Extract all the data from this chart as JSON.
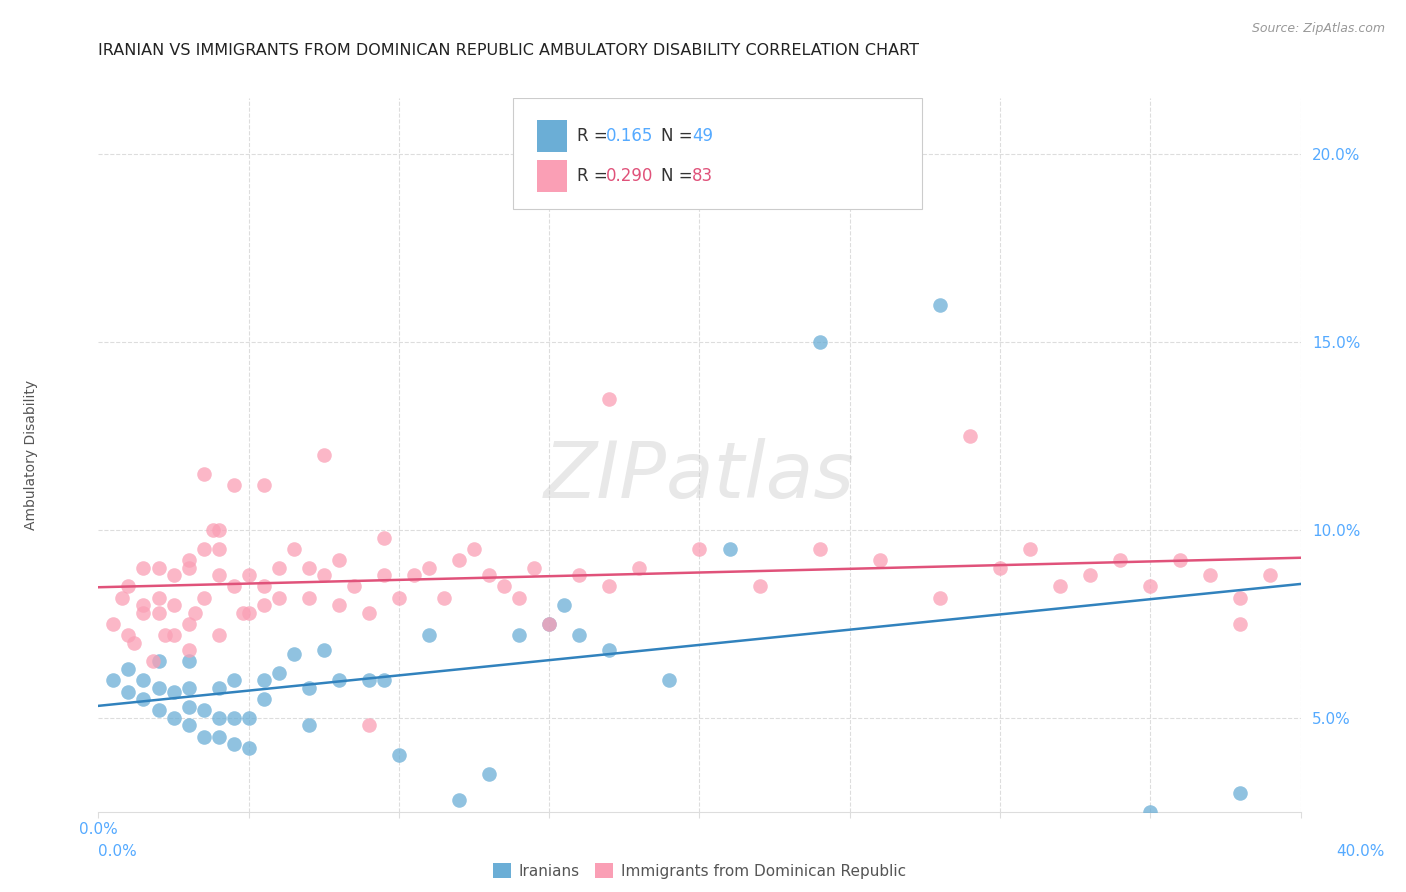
{
  "title": "IRANIAN VS IMMIGRANTS FROM DOMINICAN REPUBLIC AMBULATORY DISABILITY CORRELATION CHART",
  "source": "Source: ZipAtlas.com",
  "ylabel": "Ambulatory Disability",
  "ytick_labels": [
    "5.0%",
    "10.0%",
    "15.0%",
    "20.0%"
  ],
  "ytick_values": [
    0.05,
    0.1,
    0.15,
    0.2
  ],
  "xlim": [
    0.0,
    0.4
  ],
  "ylim": [
    0.025,
    0.215
  ],
  "legend_blue_r": "0.165",
  "legend_blue_n": "49",
  "legend_pink_r": "0.290",
  "legend_pink_n": "83",
  "label_blue": "Iranians",
  "label_pink": "Immigrants from Dominican Republic",
  "color_blue": "#6baed6",
  "color_pink": "#fa9fb5",
  "line_blue": "#3182bd",
  "line_pink": "#e0527a",
  "watermark": "ZIPatlas",
  "legend_r_color": "#3399ff",
  "legend_n_color": "#3399ff",
  "title_color": "#222222",
  "source_color": "#999999",
  "tick_color": "#55aaff",
  "ylabel_color": "#555555",
  "grid_color": "#dddddd",
  "blue_x": [
    0.005,
    0.01,
    0.01,
    0.015,
    0.015,
    0.02,
    0.02,
    0.02,
    0.025,
    0.025,
    0.03,
    0.03,
    0.03,
    0.03,
    0.035,
    0.035,
    0.04,
    0.04,
    0.04,
    0.045,
    0.045,
    0.045,
    0.05,
    0.05,
    0.055,
    0.055,
    0.06,
    0.065,
    0.07,
    0.07,
    0.075,
    0.08,
    0.09,
    0.095,
    0.1,
    0.11,
    0.12,
    0.13,
    0.14,
    0.15,
    0.155,
    0.16,
    0.17,
    0.19,
    0.21,
    0.24,
    0.28,
    0.35,
    0.38
  ],
  "blue_y": [
    0.06,
    0.057,
    0.063,
    0.055,
    0.06,
    0.052,
    0.058,
    0.065,
    0.05,
    0.057,
    0.048,
    0.053,
    0.058,
    0.065,
    0.045,
    0.052,
    0.045,
    0.05,
    0.058,
    0.043,
    0.05,
    0.06,
    0.042,
    0.05,
    0.055,
    0.06,
    0.062,
    0.067,
    0.058,
    0.048,
    0.068,
    0.06,
    0.06,
    0.06,
    0.04,
    0.072,
    0.028,
    0.035,
    0.072,
    0.075,
    0.08,
    0.072,
    0.068,
    0.06,
    0.095,
    0.15,
    0.16,
    0.025,
    0.03
  ],
  "pink_x": [
    0.005,
    0.008,
    0.01,
    0.01,
    0.012,
    0.015,
    0.015,
    0.015,
    0.018,
    0.02,
    0.02,
    0.02,
    0.022,
    0.025,
    0.025,
    0.025,
    0.03,
    0.03,
    0.03,
    0.03,
    0.032,
    0.035,
    0.035,
    0.035,
    0.038,
    0.04,
    0.04,
    0.04,
    0.04,
    0.045,
    0.045,
    0.048,
    0.05,
    0.05,
    0.055,
    0.055,
    0.055,
    0.06,
    0.06,
    0.065,
    0.07,
    0.07,
    0.075,
    0.075,
    0.08,
    0.08,
    0.085,
    0.09,
    0.09,
    0.095,
    0.1,
    0.105,
    0.11,
    0.115,
    0.12,
    0.125,
    0.13,
    0.135,
    0.14,
    0.145,
    0.15,
    0.16,
    0.17,
    0.18,
    0.2,
    0.22,
    0.24,
    0.26,
    0.28,
    0.3,
    0.31,
    0.32,
    0.33,
    0.34,
    0.35,
    0.36,
    0.37,
    0.38,
    0.38,
    0.39,
    0.095,
    0.17,
    0.29
  ],
  "pink_y": [
    0.075,
    0.082,
    0.072,
    0.085,
    0.07,
    0.078,
    0.08,
    0.09,
    0.065,
    0.082,
    0.078,
    0.09,
    0.072,
    0.072,
    0.088,
    0.08,
    0.068,
    0.075,
    0.09,
    0.092,
    0.078,
    0.082,
    0.095,
    0.115,
    0.1,
    0.072,
    0.088,
    0.095,
    0.1,
    0.085,
    0.112,
    0.078,
    0.078,
    0.088,
    0.08,
    0.085,
    0.112,
    0.082,
    0.09,
    0.095,
    0.082,
    0.09,
    0.088,
    0.12,
    0.08,
    0.092,
    0.085,
    0.048,
    0.078,
    0.088,
    0.082,
    0.088,
    0.09,
    0.082,
    0.092,
    0.095,
    0.088,
    0.085,
    0.082,
    0.09,
    0.075,
    0.088,
    0.085,
    0.09,
    0.095,
    0.085,
    0.095,
    0.092,
    0.082,
    0.09,
    0.095,
    0.085,
    0.088,
    0.092,
    0.085,
    0.092,
    0.088,
    0.082,
    0.075,
    0.088,
    0.098,
    0.135,
    0.125
  ]
}
